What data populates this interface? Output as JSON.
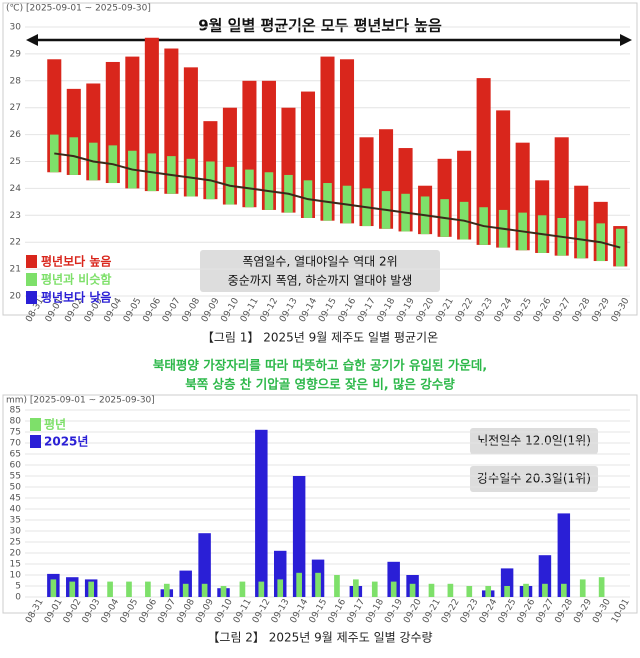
{
  "chart_data": [
    {
      "type": "bar",
      "title": "9월 일별 평균기온 모두 평년보다 높음",
      "axis_label": "(℃) [2025-09-01 ~ 2025-09-30]",
      "categories": [
        "08-31",
        "09-01",
        "09-02",
        "09-03",
        "09-04",
        "09-05",
        "09-06",
        "09-07",
        "09-08",
        "09-09",
        "09-10",
        "09-11",
        "09-12",
        "09-13",
        "09-14",
        "09-15",
        "09-16",
        "09-17",
        "09-18",
        "09-19",
        "09-20",
        "09-21",
        "09-22",
        "09-23",
        "09-24",
        "09-25",
        "09-26",
        "09-27",
        "09-28",
        "09-29",
        "09-30"
      ],
      "series": [
        {
          "name": "평년보다 높음",
          "color": "#d9261c",
          "values": [
            null,
            28.8,
            27.7,
            27.9,
            28.7,
            28.9,
            29.6,
            29.2,
            28.5,
            26.5,
            27.0,
            28.0,
            28.0,
            27.0,
            27.6,
            28.9,
            28.8,
            25.9,
            26.2,
            25.5,
            24.1,
            25.1,
            25.4,
            28.1,
            26.9,
            25.7,
            24.3,
            25.9,
            24.1,
            23.5,
            22.6
          ]
        },
        {
          "name": "평년과 비슷함",
          "color": "#7ee06a",
          "low": [
            null,
            24.6,
            24.5,
            24.3,
            24.2,
            24.0,
            23.9,
            23.8,
            23.7,
            23.6,
            23.4,
            23.3,
            23.2,
            23.1,
            22.9,
            22.8,
            22.7,
            22.6,
            22.5,
            22.4,
            22.3,
            22.2,
            22.1,
            21.9,
            21.8,
            21.7,
            21.6,
            21.5,
            21.4,
            21.3,
            21.1
          ],
          "high": [
            null,
            26.0,
            25.9,
            25.7,
            25.6,
            25.4,
            25.3,
            25.2,
            25.1,
            25.0,
            24.8,
            24.7,
            24.6,
            24.5,
            24.3,
            24.2,
            24.1,
            24.0,
            23.9,
            23.8,
            23.7,
            23.6,
            23.5,
            23.3,
            23.2,
            23.1,
            23.0,
            22.9,
            22.8,
            22.7,
            22.5
          ]
        },
        {
          "color": "#3a2a1a",
          "values": [
            null,
            25.3,
            25.2,
            25.0,
            24.9,
            24.7,
            24.6,
            24.5,
            24.4,
            24.3,
            24.1,
            24.0,
            23.9,
            23.8,
            23.6,
            23.5,
            23.4,
            23.3,
            23.2,
            23.1,
            23.0,
            22.9,
            22.8,
            22.6,
            22.5,
            22.4,
            22.3,
            22.2,
            22.1,
            22.0,
            21.8
          ]
        }
      ],
      "legend_extra": {
        "name": "평년보다 낮음",
        "color": "#2a1fd6"
      },
      "annotations": [
        "폭염일수, 열대야일수 역대 2위",
        "중순까지 폭염, 하순까지 열대야 발생"
      ],
      "caption": "【그림 1】 2025년 9월 제주도 일별 평균기온",
      "ylim": [
        20,
        30
      ],
      "yticks": [
        20,
        21,
        22,
        23,
        24,
        25,
        26,
        27,
        28,
        29,
        30
      ],
      "grid": true
    },
    {
      "type": "bar",
      "subtitle": [
        "북태평양 가장자리를 따라 따뜻하고 습한 공기가 유입된 가운데,",
        "북쪽 상층 찬 기압골 영향으로 잦은 비, 많은 강수량"
      ],
      "axis_label": "mm) [2025-09-01 ~ 2025-09-30]",
      "categories": [
        "08-31",
        "09-01",
        "09-02",
        "09-03",
        "09-04",
        "09-05",
        "09-06",
        "09-07",
        "09-08",
        "09-09",
        "09-10",
        "09-11",
        "09-12",
        "09-13",
        "09-14",
        "09-15",
        "09-16",
        "09-17",
        "09-18",
        "09-19",
        "09-20",
        "09-21",
        "09-22",
        "09-23",
        "09-24",
        "09-25",
        "09-26",
        "09-27",
        "09-28",
        "09-29",
        "09-30",
        "10-01"
      ],
      "series": [
        {
          "name": "2025년",
          "color": "#2a1fd6",
          "values": [
            null,
            10.5,
            9,
            8,
            0,
            0,
            0,
            3.5,
            12,
            29,
            4,
            0,
            76,
            21,
            55,
            17,
            0,
            5,
            0,
            16,
            10,
            0,
            0,
            0,
            3,
            13,
            5,
            19,
            38,
            0,
            0,
            null
          ]
        },
        {
          "name": "평년",
          "color": "#7ee06a",
          "values": [
            null,
            8,
            7,
            7,
            7,
            7,
            7,
            6,
            6,
            6,
            5,
            7,
            7,
            8,
            11,
            11,
            10,
            8,
            7,
            7,
            6,
            6,
            6,
            5,
            5,
            5,
            6,
            6,
            6,
            8,
            9,
            null
          ]
        }
      ],
      "annotations": [
        "뇌전일수 12.0일(1위)",
        "강수일수 20.3일(1위)"
      ],
      "caption": "【그림 2】 2025년 9월 제주도 일별 강수량",
      "ylim": [
        0,
        85
      ],
      "yticks": [
        0,
        5,
        10,
        15,
        20,
        25,
        30,
        35,
        40,
        45,
        50,
        55,
        60,
        65,
        70,
        75,
        80,
        85
      ],
      "grid": true
    }
  ]
}
